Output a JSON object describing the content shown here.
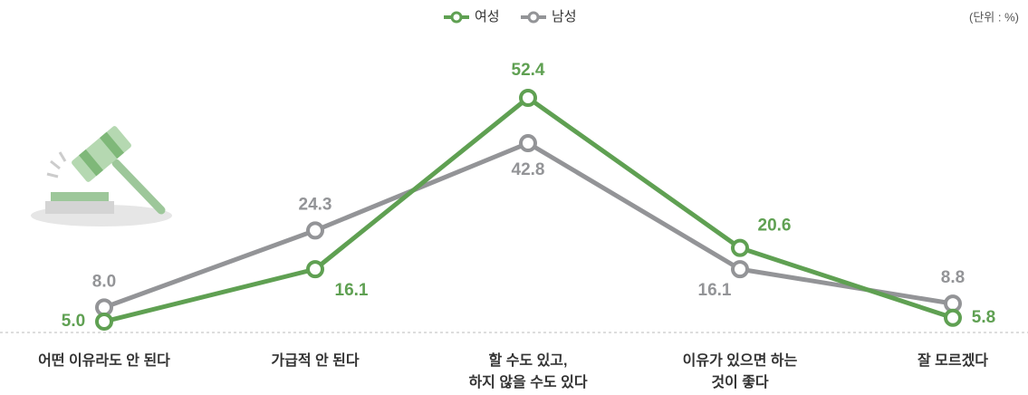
{
  "chart_data": {
    "type": "line",
    "unit": "(단위 : %)",
    "categories": [
      "어떤 이유라도 안 된다",
      "가급적 안 된다",
      "할 수도 있고,\n하지 않을 수도 있다",
      "이유가 있으면 하는\n것이 좋다",
      "잘 모르겠다"
    ],
    "series": [
      {
        "name": "여성",
        "color": "#5fa052",
        "values": [
          5.0,
          16.1,
          52.4,
          20.6,
          5.8
        ],
        "value_labels": [
          "5.0",
          "16.1",
          "52.4",
          "20.6",
          "5.8"
        ]
      },
      {
        "name": "남성",
        "color": "#939497",
        "values": [
          8.0,
          24.3,
          42.8,
          16.1,
          8.8
        ],
        "value_labels": [
          "8.0",
          "24.3",
          "42.8",
          "16.1",
          "8.8"
        ]
      }
    ]
  }
}
